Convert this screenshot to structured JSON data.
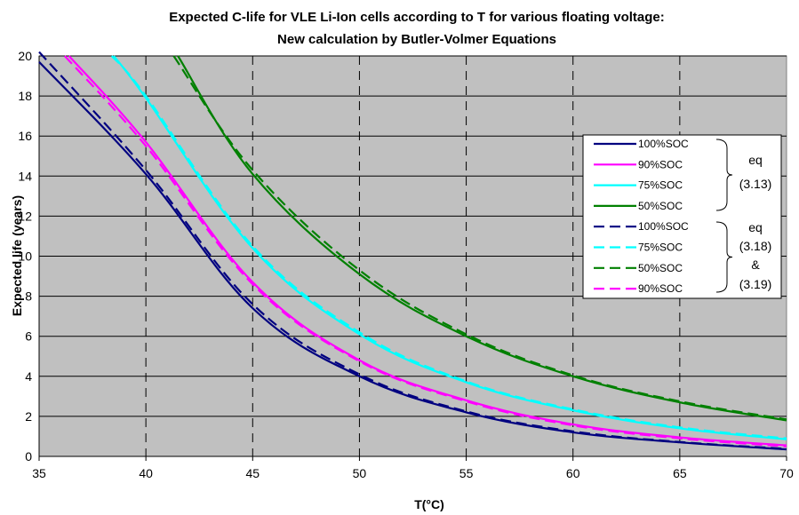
{
  "chart_data": {
    "type": "line",
    "title": "Expected C-life for VLE Li-Ion cells according to T for various floating voltage:",
    "subtitle": "New calculation by Butler-Volmer Equations",
    "xlabel": "T(°C)",
    "ylabel": "Expected life (years)",
    "xlim": [
      35,
      70
    ],
    "ylim": [
      0,
      20
    ],
    "xticks": [
      "35",
      "40",
      "45",
      "50",
      "55",
      "60",
      "65",
      "70"
    ],
    "yticks": [
      "0",
      "2",
      "4",
      "6",
      "8",
      "10",
      "12",
      "14",
      "16",
      "18",
      "20"
    ],
    "grid": true,
    "plot_background": "#c0c0c0",
    "legend_position": "right",
    "series": [
      {
        "name": "100%SOC",
        "style": "solid",
        "color": "#000080",
        "x": [
          35,
          40,
          45,
          50,
          55,
          60,
          65,
          70
        ],
        "y": [
          19.7,
          14.1,
          7.4,
          4.0,
          2.2,
          1.2,
          0.7,
          0.35
        ]
      },
      {
        "name": "90%SOC",
        "style": "solid",
        "color": "#ff00ff",
        "x": [
          36.4,
          40,
          45,
          50,
          55,
          60,
          65,
          70
        ],
        "y": [
          20,
          15.7,
          8.7,
          4.8,
          2.8,
          1.6,
          0.95,
          0.55
        ]
      },
      {
        "name": "75%SOC",
        "style": "solid",
        "color": "#00ffff",
        "x": [
          38.5,
          40,
          45,
          50,
          55,
          60,
          65,
          70
        ],
        "y": [
          20,
          17.9,
          10.4,
          6.1,
          3.7,
          2.3,
          1.4,
          0.85
        ]
      },
      {
        "name": "50%SOC",
        "style": "solid",
        "color": "#008000",
        "x": [
          41.5,
          45,
          50,
          55,
          60,
          65,
          70
        ],
        "y": [
          20,
          14.1,
          9.1,
          6.0,
          4.0,
          2.7,
          1.8
        ]
      },
      {
        "name": "100%SOC",
        "style": "dashed",
        "color": "#000080",
        "x": [
          35,
          40,
          45,
          50,
          55,
          60,
          65,
          70
        ],
        "y": [
          20.2,
          14.3,
          7.6,
          4.1,
          2.25,
          1.25,
          0.72,
          0.38
        ]
      },
      {
        "name": "75%SOC",
        "style": "dashed",
        "color": "#00ffff",
        "x": [
          38.4,
          40,
          45,
          50,
          55,
          60,
          65,
          70
        ],
        "y": [
          20,
          18.0,
          10.5,
          6.2,
          3.75,
          2.35,
          1.45,
          0.9
        ]
      },
      {
        "name": "50%SOC",
        "style": "dashed",
        "color": "#008000",
        "x": [
          41.3,
          45,
          50,
          55,
          60,
          65,
          70
        ],
        "y": [
          20,
          14.3,
          9.3,
          6.1,
          4.05,
          2.75,
          1.85
        ]
      },
      {
        "name": "90%SOC",
        "style": "dashed",
        "color": "#ff00ff",
        "x": [
          36.2,
          40,
          45,
          50,
          55,
          60,
          65,
          70
        ],
        "y": [
          20,
          15.5,
          8.6,
          4.75,
          2.75,
          1.55,
          0.9,
          0.5
        ]
      }
    ],
    "legend_groups": [
      {
        "label_lines": [
          "eq",
          "(3.13)"
        ]
      },
      {
        "label_lines": [
          "eq",
          "(3.18)",
          "&",
          "(3.19)"
        ]
      }
    ]
  }
}
